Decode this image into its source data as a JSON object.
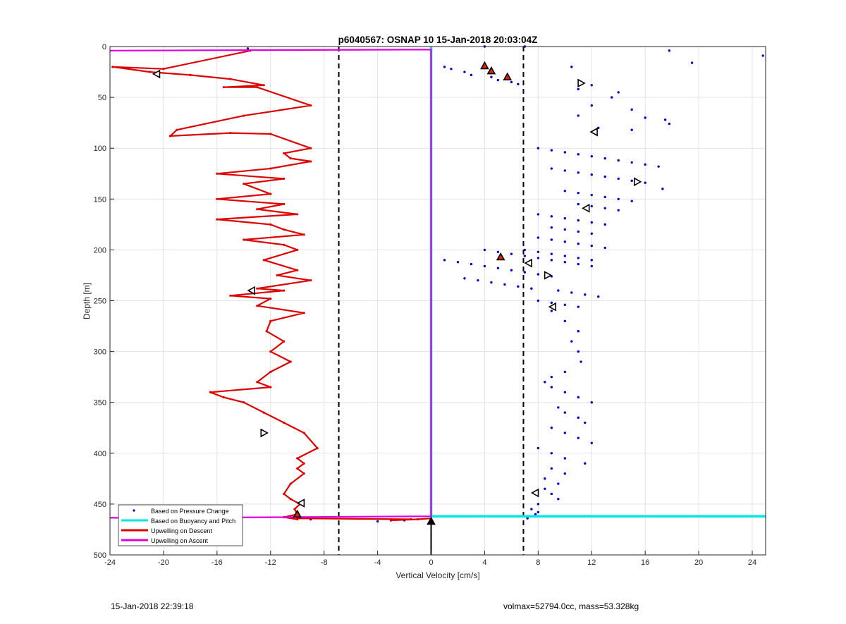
{
  "chart_data": {
    "type": "scatter",
    "title": "p6040567: OSNAP 10 15-Jan-2018 20:03:04Z",
    "xlabel": "Vertical Velocity [cm/s]",
    "ylabel": "Depth [m]",
    "xlim": [
      -24,
      25
    ],
    "ylim": [
      0,
      500
    ],
    "y_reversed": true,
    "grid": true,
    "xticks": [
      -24,
      -20,
      -16,
      -12,
      -8,
      -4,
      0,
      4,
      8,
      12,
      16,
      20,
      24
    ],
    "yticks": [
      0,
      50,
      100,
      150,
      200,
      250,
      300,
      350,
      400,
      450,
      500
    ],
    "legend_position": "bottom-left",
    "legend": [
      {
        "label": "Based on Pressure Change",
        "style": "dots",
        "color": "#0000cc"
      },
      {
        "label": "Based on Buoyancy and Pitch",
        "style": "line",
        "color": "#00e5e5"
      },
      {
        "label": "Upwelling on Descent",
        "style": "line",
        "color": "#dd0000"
      },
      {
        "label": "Upwelling on Ascent",
        "style": "line",
        "color": "#dd00dd"
      }
    ],
    "threshold_lines_x": [
      -6.9,
      6.9
    ],
    "series": [
      {
        "name": "Upwelling on Descent",
        "type": "line",
        "color": "#dd0000",
        "x": [
          -13.5,
          -20,
          -23.8,
          -21,
          -18,
          -15,
          -12.5,
          -15.5,
          -13,
          -9,
          -14,
          -19,
          -19.5,
          -15,
          -12,
          -9,
          -11,
          -10.5,
          -9,
          -12,
          -16,
          -11,
          -14,
          -12,
          -16,
          -11,
          -13,
          -10,
          -16,
          -12,
          -11,
          -9.5,
          -14,
          -11,
          -10,
          -12.5,
          -10,
          -11.5,
          -9,
          -13,
          -11,
          -15,
          -12,
          -13,
          -9.5,
          -12,
          -12.3,
          -11,
          -12,
          -10.5,
          -12,
          -13,
          -12,
          -16.5,
          -15.5,
          -14,
          -12.5,
          -11,
          -9.5,
          -8.5,
          -10,
          -9.5,
          -10,
          -9.5,
          -10.5,
          -11,
          -10.5,
          -9.8,
          -10.2,
          -10,
          -11,
          -10,
          -10,
          -1.5,
          -3,
          -1,
          0
        ],
        "y": [
          4,
          22,
          20,
          25,
          28,
          32,
          38,
          40,
          40,
          58,
          68,
          82,
          88,
          85,
          86,
          100,
          105,
          110,
          113,
          120,
          125,
          130,
          135,
          145,
          150,
          155,
          160,
          165,
          170,
          175,
          180,
          185,
          190,
          195,
          200,
          210,
          220,
          225,
          230,
          238,
          240,
          245,
          248,
          255,
          262,
          270,
          280,
          290,
          300,
          310,
          320,
          330,
          335,
          340,
          345,
          350,
          360,
          370,
          380,
          395,
          405,
          410,
          415,
          420,
          430,
          440,
          445,
          450,
          455,
          460,
          463,
          465,
          464,
          465,
          466,
          465,
          464
        ]
      },
      {
        "name": "Upwelling on Ascent",
        "type": "line",
        "color": "#dd00dd",
        "x": [
          -24,
          -12,
          0,
          0,
          -12,
          -24
        ],
        "y": [
          4,
          3.5,
          3,
          462,
          463,
          463.5
        ]
      },
      {
        "name": "Based on Buoyancy and Pitch",
        "type": "line",
        "color": "#00e5e5",
        "x": [
          0,
          0,
          0,
          25
        ],
        "y": [
          0,
          462,
          462,
          462
        ]
      },
      {
        "name": "Based on Pressure Change",
        "type": "scatter",
        "color": "#0000cc",
        "x": [
          -13.7,
          4,
          7,
          17.8,
          19.5,
          24.8,
          10.5,
          12,
          11,
          14,
          13.5,
          12,
          15,
          11,
          16,
          17.5,
          17.8,
          12.5,
          15,
          8,
          9,
          10,
          11,
          12,
          13,
          14,
          15,
          16,
          17,
          9,
          10,
          11,
          12,
          13,
          14,
          15,
          16,
          17.3,
          10,
          11,
          12,
          13,
          14,
          15,
          11,
          12,
          13,
          14,
          8,
          9,
          10,
          11,
          12,
          13,
          9,
          10,
          11,
          12,
          8,
          9,
          10,
          11,
          12,
          13,
          7,
          8,
          9,
          10,
          11,
          12,
          1,
          2,
          3,
          4,
          5,
          6,
          7,
          8,
          9,
          2.5,
          3.5,
          4.5,
          5.5,
          6.5,
          7.5,
          9.5,
          10.5,
          11.5,
          12.5,
          4,
          5,
          6,
          7,
          8,
          9,
          10,
          11,
          12,
          8,
          9,
          10,
          11,
          9,
          10,
          11,
          10.5,
          11,
          11.2,
          10,
          9,
          8.5,
          9,
          10,
          11,
          12,
          9.5,
          10,
          11,
          11.5,
          9,
          10,
          11,
          12,
          8,
          9,
          10,
          11.5,
          9,
          10,
          8.5,
          9.5,
          8.5,
          9,
          9.5,
          8,
          7.5,
          7.8,
          8,
          7,
          7.2,
          1,
          1.5,
          2.5,
          3,
          4.5,
          5,
          6,
          6.5,
          -9,
          -4,
          -3,
          -2
        ],
        "y": [
          2,
          0,
          0,
          4,
          16,
          9,
          20,
          38,
          42,
          45,
          50,
          58,
          62,
          68,
          70,
          72,
          76,
          80,
          82,
          100,
          102,
          104,
          106,
          108,
          110,
          112,
          114,
          116,
          118,
          120,
          122,
          124,
          126,
          128,
          130,
          132,
          134,
          140,
          142,
          144,
          146,
          148,
          150,
          152,
          155,
          157,
          159,
          161,
          165,
          167,
          169,
          171,
          173,
          175,
          178,
          180,
          182,
          184,
          188,
          190,
          192,
          194,
          196,
          198,
          200,
          202,
          204,
          206,
          208,
          210,
          210,
          212,
          214,
          216,
          218,
          220,
          222,
          224,
          226,
          228,
          230,
          232,
          234,
          236,
          238,
          240,
          242,
          244,
          246,
          200,
          202,
          204,
          206,
          208,
          210,
          212,
          214,
          216,
          250,
          252,
          254,
          256,
          260,
          270,
          280,
          290,
          300,
          310,
          320,
          325,
          330,
          335,
          340,
          345,
          350,
          355,
          360,
          365,
          370,
          375,
          380,
          385,
          390,
          395,
          400,
          405,
          410,
          415,
          420,
          425,
          430,
          435,
          440,
          445,
          450,
          455,
          460,
          458,
          462,
          464,
          20,
          22,
          25,
          28,
          30,
          33,
          35,
          37,
          465,
          467,
          466,
          466
        ]
      }
    ],
    "markers": [
      {
        "shape": "triangle-left",
        "face": "#ffffff",
        "x": -20.5,
        "y": 27
      },
      {
        "shape": "triangle-right",
        "face": "#ffffff",
        "x": 11.2,
        "y": 36
      },
      {
        "shape": "triangle-up",
        "face": "#dd2200",
        "x": 4,
        "y": 19
      },
      {
        "shape": "triangle-up",
        "face": "#dd2200",
        "x": 4.5,
        "y": 24
      },
      {
        "shape": "triangle-up",
        "face": "#dd2200",
        "x": 5.7,
        "y": 30
      },
      {
        "shape": "triangle-left",
        "face": "#ffffff",
        "x": 12.2,
        "y": 84
      },
      {
        "shape": "triangle-right",
        "face": "#ffffff",
        "x": 15.4,
        "y": 133
      },
      {
        "shape": "triangle-left",
        "face": "#ffffff",
        "x": 11.6,
        "y": 159
      },
      {
        "shape": "triangle-up",
        "face": "#dd2200",
        "x": 5.2,
        "y": 207
      },
      {
        "shape": "triangle-left",
        "face": "#ffffff",
        "x": 7.3,
        "y": 213
      },
      {
        "shape": "triangle-right",
        "face": "#ffffff",
        "x": 8.7,
        "y": 225
      },
      {
        "shape": "triangle-left",
        "face": "#ffffff",
        "x": -13.4,
        "y": 240
      },
      {
        "shape": "triangle-left",
        "face": "#ffffff",
        "x": 9.1,
        "y": 256
      },
      {
        "shape": "triangle-right",
        "face": "#ffffff",
        "x": -12.5,
        "y": 380
      },
      {
        "shape": "triangle-left",
        "face": "#ffffff",
        "x": 7.8,
        "y": 439
      },
      {
        "shape": "triangle-left",
        "face": "#ffffff",
        "x": -9.7,
        "y": 449
      },
      {
        "shape": "triangle-up",
        "face": "#dd2200",
        "x": -10,
        "y": 460
      },
      {
        "shape": "triangle-up",
        "face": "#000000",
        "x": 0,
        "y": 467
      }
    ]
  },
  "footer": {
    "left": "15-Jan-2018 22:39:18",
    "right": "volmax=52794.0cc, mass=53.328kg"
  }
}
